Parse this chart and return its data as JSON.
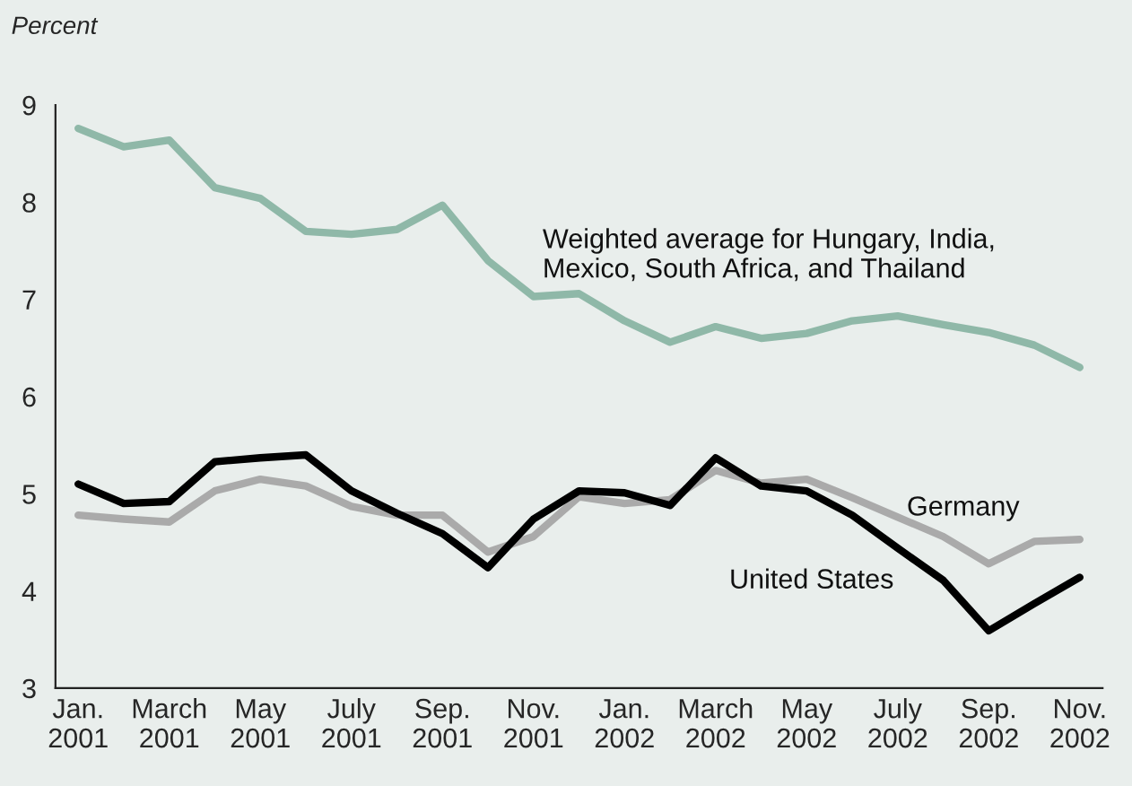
{
  "chart_data": {
    "type": "line",
    "ylabel": "Percent",
    "categories": [
      "Jan.\n2001",
      null,
      "March\n2001",
      null,
      "May\n2001",
      null,
      "July\n2001",
      null,
      "Sep.\n2001",
      null,
      "Nov.\n2001",
      null,
      "Jan.\n2002",
      null,
      "March\n2002",
      null,
      "May\n2002",
      null,
      "July\n2002",
      null,
      "Sep.\n2002",
      null,
      "Nov.\n2002"
    ],
    "series": [
      {
        "name": "Weighted average for Hungary, India,\nMexico, South Africa, and Thailand",
        "color": "#8fb8a8",
        "values": [
          8.76,
          8.57,
          8.64,
          8.15,
          8.04,
          7.7,
          7.67,
          7.72,
          7.97,
          7.4,
          7.03,
          7.06,
          6.78,
          6.56,
          6.72,
          6.6,
          6.65,
          6.78,
          6.83,
          6.74,
          6.66,
          6.53,
          6.3
        ]
      },
      {
        "name": "Germany",
        "color": "#aaaaaa",
        "values": [
          4.78,
          4.74,
          4.71,
          5.03,
          5.15,
          5.08,
          4.87,
          4.78,
          4.78,
          4.4,
          4.56,
          4.97,
          4.9,
          4.94,
          5.24,
          5.11,
          5.15,
          4.96,
          4.76,
          4.56,
          4.28,
          4.51,
          4.53
        ]
      },
      {
        "name": "United States",
        "color": "#000000",
        "values": [
          5.1,
          4.9,
          4.92,
          5.33,
          5.37,
          5.4,
          5.03,
          4.8,
          4.59,
          4.24,
          4.74,
          5.03,
          5.01,
          4.88,
          5.37,
          5.08,
          5.03,
          4.78,
          4.44,
          4.11,
          3.59,
          3.87,
          4.14
        ]
      }
    ],
    "ylim": [
      3,
      9
    ],
    "yticks": [
      3,
      4,
      5,
      6,
      7,
      8,
      9
    ],
    "grid": false,
    "legend": false,
    "marker": "none",
    "line_style": "solid"
  }
}
